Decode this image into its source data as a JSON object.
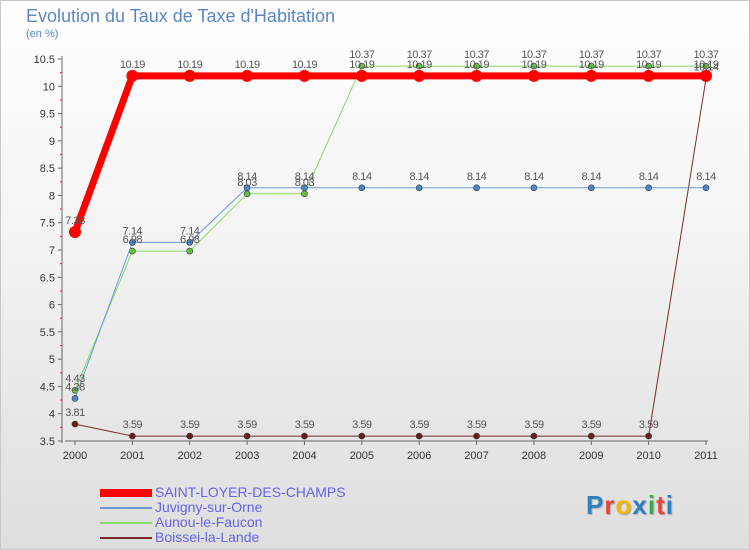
{
  "title": "Evolution du Taux de Taxe d'Habitation",
  "unit": "(en %)",
  "brand": {
    "letters": [
      "P",
      "r",
      "o",
      "x",
      "i",
      "t",
      "i"
    ],
    "colors": [
      "#2f7fc1",
      "#e8423a",
      "#f5b800",
      "#2f7fc1",
      "#3aa84a",
      "#e8423a",
      "#2f7fc1"
    ]
  },
  "chart_data": {
    "type": "line",
    "title": "Evolution du Taux de Taxe d'Habitation",
    "ylabel": "(en %)",
    "xlabel": "",
    "ylim": [
      3.5,
      10.5
    ],
    "yticks": [
      "3.5",
      "4",
      "4.5",
      "5",
      "5.5",
      "6",
      "6.5",
      "7",
      "7.5",
      "8",
      "8.5",
      "9",
      "9.5",
      "10",
      "10.5"
    ],
    "categories": [
      "2000",
      "2001",
      "2002",
      "2003",
      "2004",
      "2005",
      "2006",
      "2007",
      "2008",
      "2009",
      "2010",
      "2011"
    ],
    "grid": false,
    "legend": "bottom-left",
    "series": [
      {
        "name": "Boissei-la-Lande",
        "color": "#7a2a2a",
        "dot": "#6b1c1c",
        "width": 1,
        "radius": 3,
        "values": [
          3.81,
          3.59,
          3.59,
          3.59,
          3.59,
          3.59,
          3.59,
          3.59,
          3.59,
          3.59,
          3.59,
          10.14
        ],
        "labels": [
          "3.81",
          "3.59",
          "3.59",
          "3.59",
          "3.59",
          "3.59",
          "3.59",
          "3.59",
          "3.59",
          "3.59",
          "3.59",
          "10.14"
        ]
      },
      {
        "name": "Aunou-le-Faucon",
        "color": "#88d86a",
        "dot": "#66c040",
        "width": 1,
        "radius": 3,
        "values": [
          4.43,
          6.98,
          6.98,
          8.03,
          8.03,
          10.37,
          10.37,
          10.37,
          10.37,
          10.37,
          10.37,
          10.37
        ],
        "labels": [
          "4.43",
          "6.98",
          "6.98",
          "8.03",
          "8.03",
          "10.37",
          "10.37",
          "10.37",
          "10.37",
          "10.37",
          "10.37",
          "10.37"
        ]
      },
      {
        "name": "Juvigny-sur-Orne",
        "color": "#6b9bd6",
        "dot": "#4a86c8",
        "width": 1,
        "radius": 3,
        "values": [
          4.28,
          7.14,
          7.14,
          8.14,
          8.14,
          8.14,
          8.14,
          8.14,
          8.14,
          8.14,
          8.14,
          8.14
        ],
        "labels": [
          "4.28",
          "7.14",
          "7.14",
          "8.14",
          "8.14",
          "8.14",
          "8.14",
          "8.14",
          "8.14",
          "8.14",
          "8.14",
          "8.14"
        ]
      },
      {
        "name": "SAINT-LOYER-DES-CHAMPS",
        "color": "#ff0000",
        "dot": "#ff0000",
        "width": 7,
        "radius": 6,
        "values": [
          7.33,
          10.19,
          10.19,
          10.19,
          10.19,
          10.19,
          10.19,
          10.19,
          10.19,
          10.19,
          10.19,
          10.19
        ],
        "labels": [
          "7.33",
          "10.19",
          "10.19",
          "10.19",
          "10.19",
          "10.19",
          "10.19",
          "10.19",
          "10.19",
          "10.19",
          "10.19",
          "10.19"
        ]
      }
    ],
    "legend_order": [
      "SAINT-LOYER-DES-CHAMPS",
      "Juvigny-sur-Orne",
      "Aunou-le-Faucon",
      "Boissei-la-Lande"
    ]
  }
}
